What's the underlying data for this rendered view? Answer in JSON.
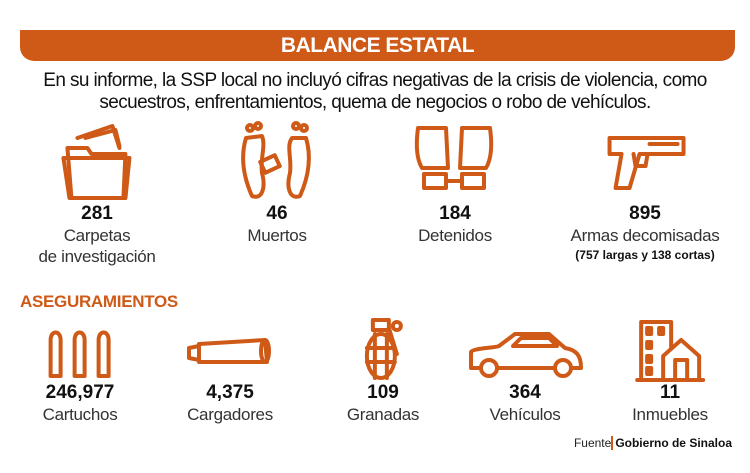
{
  "header": {
    "title": "BALANCE ESTATAL"
  },
  "intro": {
    "line1": "En su informe, la SSP local no incluyó cifras negativas de la crisis de violencia, como",
    "line2": "secuestros, enfrentamientos, quema de negocios o robo de vehículos."
  },
  "balance": [
    {
      "icon": "folder-icon",
      "value": "281",
      "label1": "Carpetas",
      "label2": "de investigación"
    },
    {
      "icon": "feet-tag-icon",
      "value": "46",
      "label1": "Muertos"
    },
    {
      "icon": "handcuffed-hands-icon",
      "value": "184",
      "label1": "Detenidos"
    },
    {
      "icon": "pistol-icon",
      "value": "895",
      "label1": "Armas decomisadas",
      "note": "(757 largas  y 138 cortas)"
    }
  ],
  "seizures": {
    "title": "ASEGURAMIENTOS",
    "items": [
      {
        "icon": "bullets-icon",
        "value": "246,977",
        "label": "Cartuchos"
      },
      {
        "icon": "magazine-icon",
        "value": "4,375",
        "label": "Cargadores"
      },
      {
        "icon": "grenade-icon",
        "value": "109",
        "label": "Granadas"
      },
      {
        "icon": "car-icon",
        "value": "364",
        "label": "Vehículos"
      },
      {
        "icon": "building-icon",
        "value": "11",
        "label": "Inmuebles"
      }
    ]
  },
  "source": {
    "label": "Fuente",
    "value": "Gobierno de Sinaloa"
  },
  "colors": {
    "accent": "#cf5a17"
  }
}
